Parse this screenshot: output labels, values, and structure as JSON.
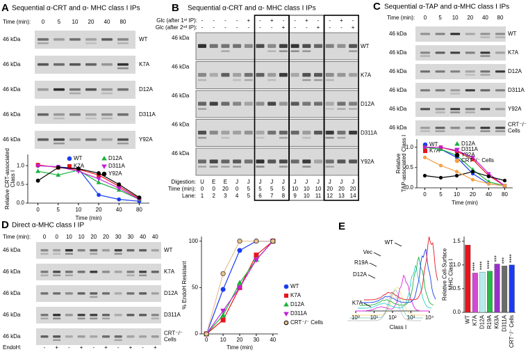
{
  "panels": {
    "A": {
      "letter": "A",
      "title": "Sequential α-CRT and α- MHC class I IPs",
      "time_label": "Time (min):",
      "times": [
        "0",
        "5",
        "10",
        "20",
        "40",
        "80"
      ],
      "marker": "46 kDa",
      "gels": [
        "WT",
        "K7A",
        "D12A",
        "D311A",
        "Y92A"
      ]
    },
    "B": {
      "letter": "B",
      "title": "Sequential α-CRT and α- MHC class I IPs",
      "glc1_label": "Glc (after 1ˢᵗ IP):",
      "glc1": [
        "-",
        "-",
        "-",
        "-",
        "+",
        "-",
        "+",
        "-",
        "-",
        "+",
        "-",
        "-",
        "+",
        "-"
      ],
      "glc2_label": "Glc (after 2ⁿᵈ IP):",
      "glc2": [
        "-",
        "-",
        "-",
        "-",
        "-",
        "-",
        "-",
        "+",
        "-",
        "-",
        "+",
        "-",
        "-",
        "+"
      ],
      "marker": "46 kDa",
      "gels": [
        "WT",
        "K7A",
        "D12A",
        "D311A",
        "Y92A"
      ],
      "digestion_label": "Digestion:",
      "digestion": [
        "U",
        "E",
        "E",
        "J",
        "J",
        "J",
        "J",
        "J",
        "J",
        "J",
        "J",
        "J",
        "J",
        "J"
      ],
      "time_label": "Time (min):",
      "times": [
        "0",
        "0",
        "20",
        "0",
        "5",
        "5",
        "5",
        "5",
        "10",
        "10",
        "10",
        "20",
        "20",
        "20"
      ],
      "lane_label": "Lane:",
      "lanes": [
        "1",
        "2",
        "3",
        "4",
        "5",
        "6",
        "7",
        "8",
        "9",
        "10",
        "11",
        "12",
        "13",
        "14"
      ]
    },
    "C": {
      "letter": "C",
      "title": "Sequential α-TAP and α-MHC class I IPs",
      "time_label": "Time (min):",
      "times": [
        "0",
        "5",
        "10",
        "20",
        "40",
        "80"
      ],
      "marker": "46 kDa",
      "gels": [
        "WT",
        "K7A",
        "D12A",
        "D311A",
        "Y92A",
        [
          "CRT⁻/⁻",
          "Cells"
        ]
      ]
    },
    "D": {
      "letter": "D",
      "title": "Direct α-MHC class I IP",
      "time_label": "Time (min):",
      "times": [
        "0",
        "0",
        "10",
        "10",
        "20",
        "20",
        "30",
        "30",
        "40",
        "40"
      ],
      "marker": "46 kDa",
      "gels": [
        "WT",
        "K7A",
        "D12A",
        "D311A",
        [
          "CRT⁻/⁻",
          "Cells"
        ]
      ],
      "endoh_label": "EndoH:",
      "endoh": [
        "-",
        "+",
        "-",
        "+",
        "-",
        "+",
        "-",
        "+",
        "-",
        "+"
      ]
    },
    "E": {
      "letter": "E"
    }
  },
  "chart_data": [
    {
      "type": "line",
      "ylabel": [
        "Relative CRT-associated",
        "Class I"
      ],
      "xlabel": "Time (min)",
      "categories": [
        "0",
        "5",
        "10",
        "20",
        "40",
        "80"
      ],
      "ylim": [
        0,
        1.3
      ],
      "yticks": [
        {
          "value": 0,
          "label": "0.0"
        },
        {
          "value": 0.5,
          "label": "0.5"
        },
        {
          "value": 1,
          "label": "1.0"
        }
      ],
      "series": [
        {
          "name": "WT",
          "color": "#1a3cf0",
          "marker": "circle",
          "values": [
            1.0,
            0.97,
            0.92,
            0.22,
            0.1,
            0.05
          ]
        },
        {
          "name": "K7A",
          "color": "#e8141c",
          "marker": "square",
          "values": [
            1.02,
            0.95,
            0.9,
            0.75,
            0.45,
            0.12
          ]
        },
        {
          "name": "D12A",
          "color": "#18b43c",
          "marker": "triangle",
          "values": [
            0.85,
            0.75,
            0.88,
            0.55,
            0.35,
            0.1
          ]
        },
        {
          "name": "D311A",
          "color": "#c21fd6",
          "marker": "triangle-down",
          "values": [
            1.0,
            0.97,
            0.85,
            0.65,
            0.4,
            0.1
          ]
        },
        {
          "name": "Y92A",
          "color": "#000000",
          "marker": "circle",
          "values": [
            0.6,
            0.95,
            0.92,
            0.8,
            0.5,
            0.15
          ]
        }
      ]
    },
    {
      "type": "line",
      "ylabel": [
        "Relative",
        "TAP-associated Class I"
      ],
      "xlabel": "Time (min)",
      "categories": [
        "0",
        "5",
        "10",
        "20",
        "40",
        "80"
      ],
      "ylim": [
        0,
        1.2
      ],
      "yticks": [
        {
          "value": 0,
          "label": "0.0"
        },
        {
          "value": 0.5,
          "label": "0.5"
        },
        {
          "value": 1,
          "label": "1.0"
        }
      ],
      "series": [
        {
          "name": "WT",
          "color": "#1a3cf0",
          "marker": "circle",
          "values": [
            1.0,
            0.95,
            0.75,
            0.35,
            0.1,
            0.05
          ]
        },
        {
          "name": "K7A",
          "color": "#e8141c",
          "marker": "square",
          "values": [
            1.0,
            1.0,
            0.9,
            0.7,
            0.3,
            0.05
          ]
        },
        {
          "name": "D12A",
          "color": "#18b43c",
          "marker": "triangle",
          "values": [
            1.0,
            0.95,
            0.8,
            0.45,
            0.15,
            0.05
          ]
        },
        {
          "name": "D311A",
          "color": "#c21fd6",
          "marker": "triangle-down",
          "values": [
            1.0,
            1.0,
            0.92,
            0.75,
            0.35,
            0.05
          ]
        },
        {
          "name": "Y92A",
          "color": "#000000",
          "marker": "circle",
          "values": [
            0.3,
            0.25,
            0.3,
            0.4,
            0.28,
            0.18
          ]
        },
        {
          "name": "CRT⁻/⁻ Cells",
          "color": "#f5a040",
          "marker": "circle",
          "values": [
            0.75,
            0.55,
            0.4,
            0.2,
            0.1,
            0.05
          ]
        }
      ]
    },
    {
      "type": "line",
      "ylabel": "% EndoH Resistant",
      "xlabel": "Time (min)",
      "x": [
        0,
        10,
        20,
        30,
        40
      ],
      "xlim": [
        -3,
        43
      ],
      "xticks": [
        0,
        10,
        20,
        30,
        40
      ],
      "ylim": [
        0,
        105
      ],
      "yticks": [
        0,
        50,
        100
      ],
      "series": [
        {
          "name": "WT",
          "color": "#1a3cf0",
          "marker": "circle",
          "values": [
            0,
            48,
            90,
            100,
            100
          ]
        },
        {
          "name": "K7A",
          "color": "#e8141c",
          "marker": "square",
          "values": [
            0,
            15,
            50,
            85,
            100
          ]
        },
        {
          "name": "D12A",
          "color": "#18b43c",
          "marker": "triangle",
          "values": [
            0,
            20,
            55,
            80,
            100
          ]
        },
        {
          "name": "D311A",
          "color": "#c21fd6",
          "marker": "triangle-down",
          "values": [
            0,
            25,
            50,
            80,
            100
          ]
        },
        {
          "name": "CRT⁻/⁻ Cells",
          "color": "#e8c090",
          "marker": "circle",
          "values": [
            0,
            65,
            100,
            100,
            100
          ]
        }
      ]
    },
    {
      "type": "flow",
      "xlabel": "Class I",
      "xscale": "log",
      "xlim": [
        1,
        10000
      ],
      "xticks": [
        {
          "value": 1,
          "label": "10⁰"
        },
        {
          "value": 10,
          "label": "10¹"
        },
        {
          "value": 100,
          "label": "10²"
        },
        {
          "value": 1000,
          "label": "10³"
        },
        {
          "value": 10000,
          "label": "10⁴"
        }
      ],
      "curve_labels": [
        "WT",
        "Vec",
        "R19A",
        "D12A",
        "K7A"
      ],
      "curve_colors": [
        "#e8141c",
        "#1a3cf0",
        "#18b43c",
        "#30d0d0",
        "#e020e0"
      ]
    },
    {
      "type": "bar",
      "ylabel": [
        "Relative Cell-Surface",
        "MHC Class I"
      ],
      "categories": [
        "WT",
        "K7A",
        "D12A",
        "R19A",
        "K63A",
        "D311A",
        "CRT⁻/⁻ Cells"
      ],
      "values": [
        1.42,
        0.83,
        0.85,
        0.87,
        1.02,
        0.98,
        1.0
      ],
      "colors": [
        "#e8141c",
        "#d44ad4",
        "#b8ecec",
        "#2ab84a",
        "#9b2fc9",
        "#6b6b6b",
        "#1a3cf0"
      ],
      "significance": [
        null,
        "****",
        "****",
        "****",
        "***",
        "***",
        "****"
      ],
      "ylim": [
        0,
        1.6
      ],
      "yticks": [
        {
          "value": 0,
          "label": "0.0"
        },
        {
          "value": 0.5,
          "label": "0.5"
        },
        {
          "value": 1,
          "label": "1.0"
        },
        {
          "value": 1.5,
          "label": "1.5"
        }
      ]
    }
  ]
}
